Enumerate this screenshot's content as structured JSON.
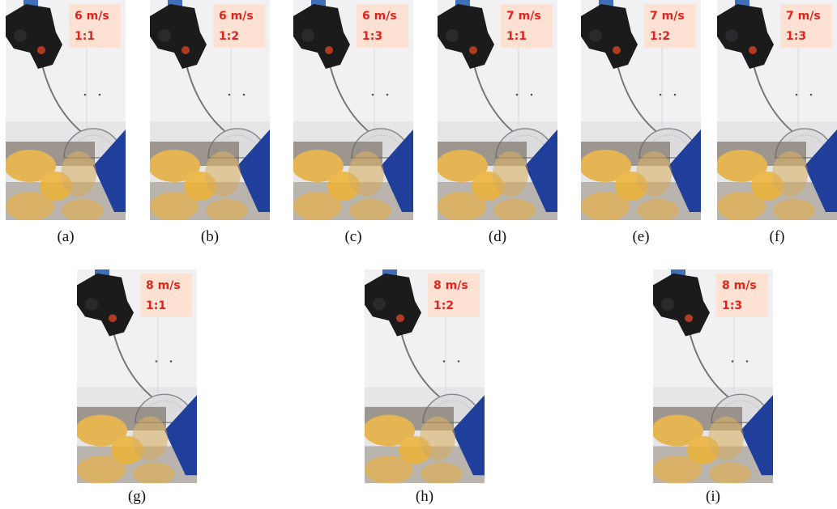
{
  "panels": [
    {
      "speed": "6 m/s",
      "ratio": "1:1",
      "caption": "(a)"
    },
    {
      "speed": "6 m/s",
      "ratio": "1:2",
      "caption": "(b)"
    },
    {
      "speed": "6 m/s",
      "ratio": "1:3",
      "caption": "(c)"
    },
    {
      "speed": "7 m/s",
      "ratio": "1:1",
      "caption": "(d)"
    },
    {
      "speed": "7 m/s",
      "ratio": "1:2",
      "caption": "(e)"
    },
    {
      "speed": "7 m/s",
      "ratio": "1:3",
      "caption": "(f)"
    },
    {
      "speed": "8 m/s",
      "ratio": "1:1",
      "caption": "(g)"
    },
    {
      "speed": "8 m/s",
      "ratio": "1:2",
      "caption": "(h)"
    },
    {
      "speed": "8 m/s",
      "ratio": "1:3",
      "caption": "(i)"
    }
  ]
}
